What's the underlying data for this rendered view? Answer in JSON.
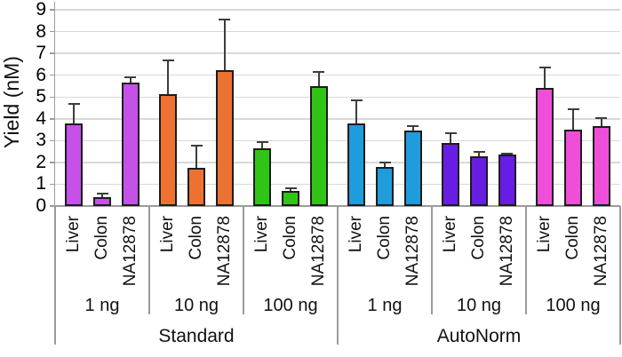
{
  "chart_data": {
    "type": "bar",
    "title": "",
    "ylabel": "Yield (nM)",
    "xlabel": "",
    "ylim": [
      0,
      9
    ],
    "yticks": [
      0,
      1,
      2,
      3,
      4,
      5,
      6,
      7,
      8,
      9
    ],
    "grid": true,
    "legend_position": "none",
    "error_bars": "upper-whisker-with-cap",
    "sample_labels": [
      "Liver",
      "Colon",
      "NA12878"
    ],
    "amount_labels": [
      "1 ng",
      "10 ng",
      "100 ng"
    ],
    "condition_labels": [
      "Standard",
      "AutoNorm"
    ],
    "groups": [
      {
        "condition": "Standard",
        "amount": "1 ng",
        "color": "#c551e8",
        "values": [
          3.8,
          0.4,
          5.65
        ],
        "errors": [
          0.9,
          0.15,
          0.25
        ]
      },
      {
        "condition": "Standard",
        "amount": "10 ng",
        "color": "#ed7231",
        "values": [
          5.15,
          1.75,
          6.25
        ],
        "errors": [
          1.55,
          1.0,
          2.3
        ]
      },
      {
        "condition": "Standard",
        "amount": "100 ng",
        "color": "#30c516",
        "values": [
          2.65,
          0.7,
          5.5
        ],
        "errors": [
          0.3,
          0.1,
          0.65
        ]
      },
      {
        "condition": "AutoNorm",
        "amount": "1 ng",
        "color": "#1f9cdc",
        "values": [
          3.8,
          1.8,
          3.45
        ],
        "errors": [
          1.05,
          0.2,
          0.2
        ]
      },
      {
        "condition": "AutoNorm",
        "amount": "10 ng",
        "color": "#681de4",
        "values": [
          2.9,
          2.3,
          2.35
        ],
        "errors": [
          0.45,
          0.2,
          0.05
        ]
      },
      {
        "condition": "AutoNorm",
        "amount": "100 ng",
        "color": "#ef4ed9",
        "values": [
          5.4,
          3.5,
          3.65
        ],
        "errors": [
          0.95,
          0.95,
          0.4
        ]
      }
    ],
    "style_colors": {
      "bar_outline": "#1c1c1c",
      "error_bar": "#3d3d3d",
      "gridline": "#d9d9d9",
      "axis_line": "#9b9b9b",
      "text": "#111111"
    }
  }
}
